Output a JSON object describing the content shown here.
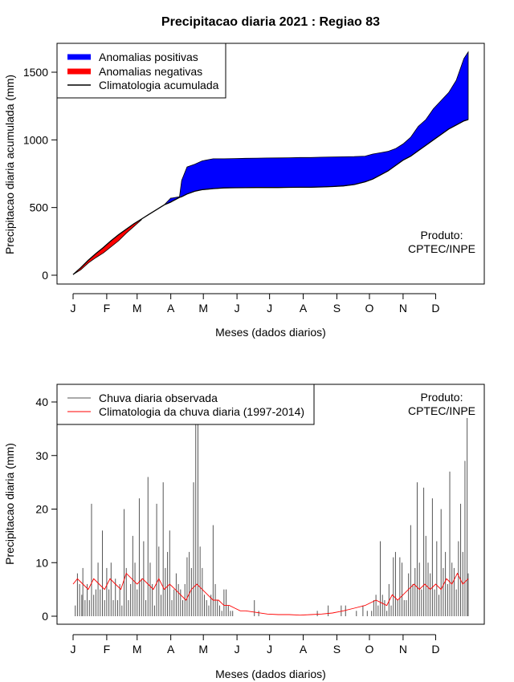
{
  "title": "Precipitacao diaria 2021 : Regiao 83",
  "months": [
    "J",
    "F",
    "M",
    "A",
    "M",
    "J",
    "J",
    "A",
    "S",
    "O",
    "N",
    "D"
  ],
  "colors": {
    "positive": "#0000ff",
    "negative": "#ff0000",
    "climatology_line": "#000000",
    "observed_bars": "#555555",
    "daily_clim_line": "#ff0000"
  },
  "chart_data": [
    {
      "id": "top",
      "type": "area",
      "xlabel": "Meses (dados diarios)",
      "ylabel": "Precipitacao diaria acumulada (mm)",
      "ylim": [
        0,
        1650
      ],
      "yticks": [
        0,
        500,
        1000,
        1500
      ],
      "legend_position": "top-left",
      "legend": [
        "Anomalias positivas",
        "Anomalias negativas",
        "Climatologia acumulada"
      ],
      "note": [
        "Produto:",
        "CPTEC/INPE"
      ],
      "x": [
        1,
        8,
        15,
        22,
        29,
        36,
        43,
        50,
        57,
        64,
        71,
        78,
        85,
        91,
        92,
        99,
        101,
        106,
        113,
        120,
        130,
        140,
        150,
        160,
        170,
        180,
        190,
        200,
        210,
        220,
        230,
        240,
        250,
        260,
        270,
        277,
        284,
        291,
        298,
        305,
        312,
        319,
        326,
        333,
        340,
        347,
        354,
        361,
        365
      ],
      "observed": [
        5,
        40,
        90,
        130,
        165,
        210,
        255,
        310,
        360,
        410,
        450,
        470,
        520,
        570,
        570,
        580,
        700,
        800,
        820,
        845,
        860,
        860,
        862,
        864,
        865,
        866,
        867,
        868,
        870,
        870,
        872,
        874,
        875,
        876,
        880,
        895,
        905,
        915,
        935,
        970,
        1020,
        1100,
        1150,
        1230,
        1290,
        1350,
        1440,
        1600,
        1650
      ],
      "climatology": [
        5,
        55,
        110,
        160,
        205,
        255,
        300,
        340,
        380,
        415,
        450,
        485,
        520,
        540,
        545,
        575,
        580,
        600,
        620,
        632,
        640,
        645,
        646,
        647,
        648,
        648,
        648,
        649,
        650,
        650,
        652,
        655,
        660,
        670,
        690,
        710,
        740,
        770,
        810,
        850,
        880,
        920,
        960,
        1000,
        1040,
        1080,
        1110,
        1140,
        1150
      ]
    },
    {
      "id": "bottom",
      "type": "bar",
      "xlabel": "Meses (dados diarios)",
      "ylabel": "Precipitacao diaria (mm)",
      "ylim": [
        0,
        43
      ],
      "yticks": [
        0,
        10,
        20,
        30,
        40
      ],
      "legend_position": "top-left",
      "legend": [
        "Chuva diaria observada",
        "Climatologia da chuva diaria (1997-2014)"
      ],
      "note": [
        "Produto:",
        "CPTEC/INPE"
      ],
      "bars": [
        [
          3,
          2
        ],
        [
          5,
          8
        ],
        [
          7,
          6
        ],
        [
          9,
          4
        ],
        [
          10,
          9
        ],
        [
          12,
          3
        ],
        [
          14,
          6
        ],
        [
          16,
          3
        ],
        [
          18,
          21
        ],
        [
          20,
          4
        ],
        [
          22,
          5
        ],
        [
          24,
          10
        ],
        [
          26,
          5
        ],
        [
          28,
          16
        ],
        [
          30,
          3
        ],
        [
          32,
          9
        ],
        [
          34,
          5
        ],
        [
          36,
          10
        ],
        [
          38,
          3
        ],
        [
          40,
          7
        ],
        [
          42,
          3
        ],
        [
          44,
          6
        ],
        [
          46,
          2
        ],
        [
          48,
          20
        ],
        [
          50,
          9
        ],
        [
          52,
          3
        ],
        [
          54,
          6
        ],
        [
          56,
          15
        ],
        [
          58,
          10
        ],
        [
          60,
          5
        ],
        [
          62,
          22
        ],
        [
          64,
          7
        ],
        [
          66,
          14
        ],
        [
          68,
          3
        ],
        [
          70,
          26
        ],
        [
          72,
          10
        ],
        [
          74,
          6
        ],
        [
          76,
          2
        ],
        [
          78,
          21
        ],
        [
          80,
          13
        ],
        [
          82,
          4
        ],
        [
          84,
          25
        ],
        [
          86,
          9
        ],
        [
          88,
          12
        ],
        [
          90,
          16
        ],
        [
          92,
          3
        ],
        [
          94,
          5
        ],
        [
          96,
          8
        ],
        [
          98,
          6
        ],
        [
          100,
          5
        ],
        [
          102,
          3
        ],
        [
          104,
          6
        ],
        [
          106,
          11
        ],
        [
          108,
          12
        ],
        [
          110,
          9
        ],
        [
          112,
          25
        ],
        [
          114,
          43
        ],
        [
          116,
          43
        ],
        [
          118,
          13
        ],
        [
          120,
          9
        ],
        [
          122,
          4
        ],
        [
          124,
          3
        ],
        [
          126,
          2
        ],
        [
          128,
          4
        ],
        [
          130,
          17
        ],
        [
          132,
          6
        ],
        [
          134,
          3
        ],
        [
          136,
          2
        ],
        [
          138,
          1
        ],
        [
          140,
          5
        ],
        [
          142,
          5
        ],
        [
          144,
          2
        ],
        [
          146,
          1
        ],
        [
          148,
          1
        ],
        [
          168,
          3
        ],
        [
          172,
          1
        ],
        [
          226,
          1
        ],
        [
          236,
          2
        ],
        [
          248,
          2
        ],
        [
          252,
          2
        ],
        [
          262,
          1
        ],
        [
          268,
          2
        ],
        [
          272,
          1
        ],
        [
          276,
          1
        ],
        [
          278,
          3
        ],
        [
          280,
          4
        ],
        [
          282,
          2
        ],
        [
          284,
          14
        ],
        [
          286,
          4
        ],
        [
          288,
          3
        ],
        [
          290,
          1
        ],
        [
          292,
          6
        ],
        [
          294,
          2
        ],
        [
          296,
          11
        ],
        [
          298,
          12
        ],
        [
          300,
          3
        ],
        [
          302,
          11
        ],
        [
          304,
          10
        ],
        [
          306,
          3
        ],
        [
          308,
          3
        ],
        [
          310,
          8
        ],
        [
          312,
          17
        ],
        [
          314,
          6
        ],
        [
          316,
          9
        ],
        [
          318,
          25
        ],
        [
          320,
          10
        ],
        [
          322,
          5
        ],
        [
          324,
          24
        ],
        [
          326,
          15
        ],
        [
          328,
          10
        ],
        [
          330,
          8
        ],
        [
          332,
          22
        ],
        [
          334,
          5
        ],
        [
          336,
          14
        ],
        [
          338,
          4
        ],
        [
          340,
          20
        ],
        [
          342,
          9
        ],
        [
          344,
          12
        ],
        [
          346,
          6
        ],
        [
          348,
          27
        ],
        [
          350,
          10
        ],
        [
          352,
          9
        ],
        [
          354,
          5
        ],
        [
          356,
          14
        ],
        [
          358,
          21
        ],
        [
          360,
          12
        ],
        [
          362,
          29
        ],
        [
          364,
          37
        ],
        [
          365,
          8
        ]
      ],
      "climatology_daily": [
        [
          1,
          6
        ],
        [
          5,
          7
        ],
        [
          10,
          6
        ],
        [
          15,
          5
        ],
        [
          20,
          7
        ],
        [
          25,
          6
        ],
        [
          30,
          5
        ],
        [
          35,
          7
        ],
        [
          40,
          6
        ],
        [
          45,
          5
        ],
        [
          50,
          8
        ],
        [
          55,
          7
        ],
        [
          60,
          6
        ],
        [
          65,
          7
        ],
        [
          70,
          6
        ],
        [
          75,
          5
        ],
        [
          80,
          7
        ],
        [
          85,
          5
        ],
        [
          90,
          6
        ],
        [
          95,
          5
        ],
        [
          100,
          4
        ],
        [
          105,
          3
        ],
        [
          110,
          5
        ],
        [
          115,
          6
        ],
        [
          120,
          5
        ],
        [
          125,
          4
        ],
        [
          130,
          3
        ],
        [
          135,
          3
        ],
        [
          140,
          2
        ],
        [
          145,
          2
        ],
        [
          150,
          1.5
        ],
        [
          155,
          1
        ],
        [
          160,
          1
        ],
        [
          170,
          0.7
        ],
        [
          180,
          0.4
        ],
        [
          190,
          0.3
        ],
        [
          200,
          0.3
        ],
        [
          210,
          0.2
        ],
        [
          220,
          0.3
        ],
        [
          230,
          0.4
        ],
        [
          240,
          0.6
        ],
        [
          250,
          1
        ],
        [
          260,
          1.5
        ],
        [
          270,
          2
        ],
        [
          280,
          3
        ],
        [
          285,
          2.5
        ],
        [
          290,
          2
        ],
        [
          295,
          4
        ],
        [
          300,
          3
        ],
        [
          305,
          4
        ],
        [
          310,
          5
        ],
        [
          315,
          6
        ],
        [
          320,
          5
        ],
        [
          325,
          6
        ],
        [
          330,
          5
        ],
        [
          335,
          6
        ],
        [
          340,
          5
        ],
        [
          345,
          7
        ],
        [
          350,
          6
        ],
        [
          355,
          8
        ],
        [
          360,
          6
        ],
        [
          365,
          7
        ]
      ]
    }
  ]
}
